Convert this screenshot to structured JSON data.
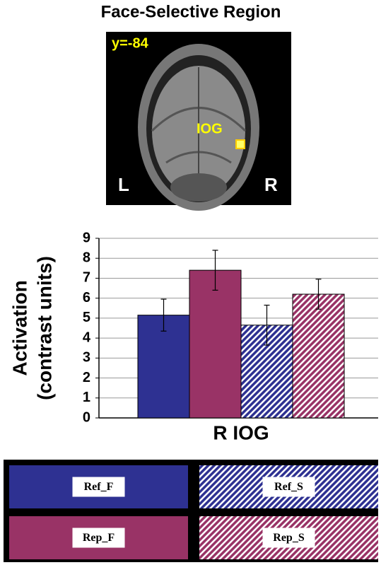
{
  "chart_data": {
    "type": "bar",
    "title": "Face-Selective Region",
    "annotations": [
      "y=-84",
      "IOG",
      "L",
      "R"
    ],
    "y_label": [
      "Activation",
      "(contrast units)"
    ],
    "categories": [
      "R IOG"
    ],
    "series": [
      {
        "name": "Ref_F",
        "color": "#2e3192",
        "hatch": false,
        "values": [
          5.15
        ],
        "errors": [
          0.8
        ]
      },
      {
        "name": "Rep_F",
        "color": "#993366",
        "hatch": false,
        "values": [
          7.4
        ],
        "errors": [
          1.0
        ]
      },
      {
        "name": "Ref_S",
        "color": "#2e3192",
        "hatch": true,
        "values": [
          4.65
        ],
        "errors": [
          1.0
        ]
      },
      {
        "name": "Rep_S",
        "color": "#993366",
        "hatch": true,
        "values": [
          6.2
        ],
        "errors": [
          0.75
        ]
      }
    ],
    "ylim": [
      0,
      9
    ],
    "yticks": [
      0,
      1,
      2,
      3,
      4,
      5,
      6,
      7,
      8,
      9
    ],
    "grid": true
  }
}
